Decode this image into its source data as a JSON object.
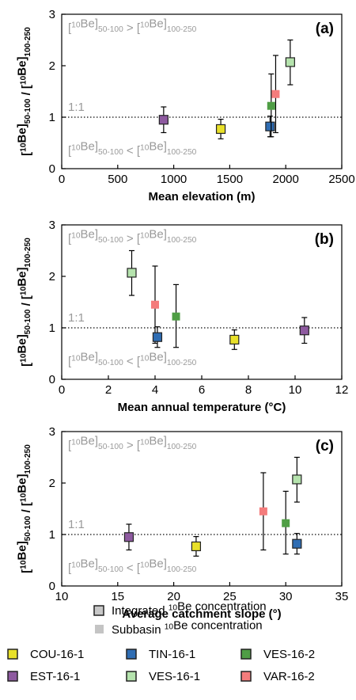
{
  "ylabel_main": "[",
  "ylabel_parts": [
    "[",
    "10",
    "Be]",
    "50-100",
    " / [",
    "10",
    "Be]",
    "100-250"
  ],
  "annotation_upper": [
    "[",
    "10",
    "Be]",
    "50-100",
    " > [",
    "10",
    "Be]",
    "100-250"
  ],
  "annotation_lower": [
    "[",
    "10",
    "Be]",
    "50-100",
    " < [",
    "10",
    "Be]",
    "100-250"
  ],
  "ratio_label": "1:1",
  "legend": {
    "integrated": [
      "Integrated ",
      "10",
      "Be concentration"
    ],
    "subbasin": [
      "Subbasin ",
      "10",
      "Be concentration"
    ],
    "catchments": [
      {
        "name": "COU-16-1",
        "color": "#e8e02a"
      },
      {
        "name": "TIN-16-1",
        "color": "#2f6db3"
      },
      {
        "name": "VES-16-2",
        "color": "#4f9e45"
      },
      {
        "name": "EST-16-1",
        "color": "#8e5aa0"
      },
      {
        "name": "VES-16-1",
        "color": "#b5e3ad"
      },
      {
        "name": "VAR-16-2",
        "color": "#f47c7c"
      }
    ]
  },
  "chart_data": [
    {
      "type": "scatter",
      "panel": "(a)",
      "xlabel": "Mean elevation (m)",
      "xlim": [
        0,
        2500
      ],
      "xticks": [
        0,
        500,
        1000,
        1500,
        2000,
        2500
      ],
      "ylim": [
        0,
        3
      ],
      "yticks": [
        0,
        1,
        2,
        3
      ],
      "reference_line_y": 1,
      "points": [
        {
          "name": "EST-16-1",
          "x": 910,
          "y": 0.95,
          "err_low": 0.7,
          "err_high": 1.2,
          "type": "integrated"
        },
        {
          "name": "COU-16-1",
          "x": 1420,
          "y": 0.77,
          "err_low": 0.58,
          "err_high": 0.96,
          "type": "integrated"
        },
        {
          "name": "TIN-16-1",
          "x": 1860,
          "y": 0.82,
          "err_low": 0.62,
          "err_high": 1.02,
          "type": "integrated"
        },
        {
          "name": "VES-16-2",
          "x": 1870,
          "y": 1.22,
          "err_low": 0.62,
          "err_high": 1.84,
          "type": "subbasin"
        },
        {
          "name": "VAR-16-2",
          "x": 1910,
          "y": 1.45,
          "err_low": 0.7,
          "err_high": 2.2,
          "type": "subbasin"
        },
        {
          "name": "VES-16-1",
          "x": 2040,
          "y": 2.07,
          "err_low": 1.63,
          "err_high": 2.5,
          "type": "integrated"
        }
      ]
    },
    {
      "type": "scatter",
      "panel": "(b)",
      "xlabel": "Mean annual temperature (°C)",
      "xlim": [
        0,
        12
      ],
      "xticks": [
        0,
        2,
        4,
        6,
        8,
        10,
        12
      ],
      "ylim": [
        0,
        3
      ],
      "yticks": [
        0,
        1,
        2,
        3
      ],
      "reference_line_y": 1,
      "points": [
        {
          "name": "VES-16-1",
          "x": 3.0,
          "y": 2.07,
          "err_low": 1.63,
          "err_high": 2.5,
          "type": "integrated"
        },
        {
          "name": "VAR-16-2",
          "x": 4.0,
          "y": 1.45,
          "err_low": 0.7,
          "err_high": 2.2,
          "type": "subbasin"
        },
        {
          "name": "TIN-16-1",
          "x": 4.1,
          "y": 0.82,
          "err_low": 0.62,
          "err_high": 1.02,
          "type": "integrated"
        },
        {
          "name": "VES-16-2",
          "x": 4.9,
          "y": 1.22,
          "err_low": 0.62,
          "err_high": 1.84,
          "type": "subbasin"
        },
        {
          "name": "COU-16-1",
          "x": 7.4,
          "y": 0.77,
          "err_low": 0.58,
          "err_high": 0.96,
          "type": "integrated"
        },
        {
          "name": "EST-16-1",
          "x": 10.4,
          "y": 0.95,
          "err_low": 0.7,
          "err_high": 1.2,
          "type": "integrated"
        }
      ]
    },
    {
      "type": "scatter",
      "panel": "(c)",
      "xlabel": "Average catchment slope (°)",
      "xlim": [
        10,
        35
      ],
      "xticks": [
        10,
        15,
        20,
        25,
        30,
        35
      ],
      "ylim": [
        0,
        3
      ],
      "yticks": [
        0,
        1,
        2,
        3
      ],
      "reference_line_y": 1,
      "points": [
        {
          "name": "EST-16-1",
          "x": 16,
          "y": 0.95,
          "err_low": 0.7,
          "err_high": 1.2,
          "type": "integrated"
        },
        {
          "name": "COU-16-1",
          "x": 22,
          "y": 0.77,
          "err_low": 0.58,
          "err_high": 0.96,
          "type": "integrated"
        },
        {
          "name": "VAR-16-2",
          "x": 28,
          "y": 1.45,
          "err_low": 0.7,
          "err_high": 2.2,
          "type": "subbasin"
        },
        {
          "name": "VES-16-2",
          "x": 30,
          "y": 1.22,
          "err_low": 0.62,
          "err_high": 1.84,
          "type": "subbasin"
        },
        {
          "name": "VES-16-1",
          "x": 31,
          "y": 2.07,
          "err_low": 1.63,
          "err_high": 2.5,
          "type": "integrated"
        },
        {
          "name": "TIN-16-1",
          "x": 31,
          "y": 0.82,
          "err_low": 0.62,
          "err_high": 1.02,
          "type": "integrated"
        }
      ]
    }
  ]
}
